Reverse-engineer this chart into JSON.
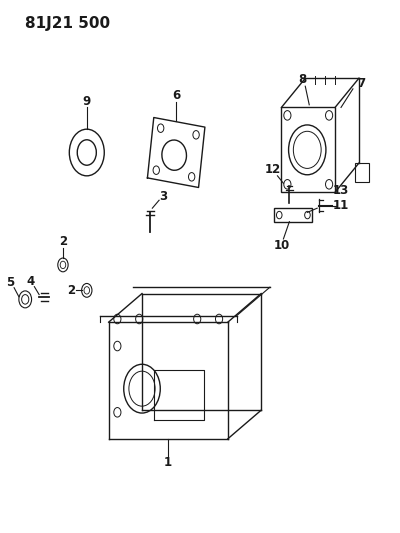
{
  "title": "81J21 500",
  "bg_color": "#ffffff",
  "line_color": "#1a1a1a",
  "title_fontsize": 11,
  "label_fontsize": 8.5,
  "fig_width": 4.0,
  "fig_height": 5.33,
  "dpi": 100
}
